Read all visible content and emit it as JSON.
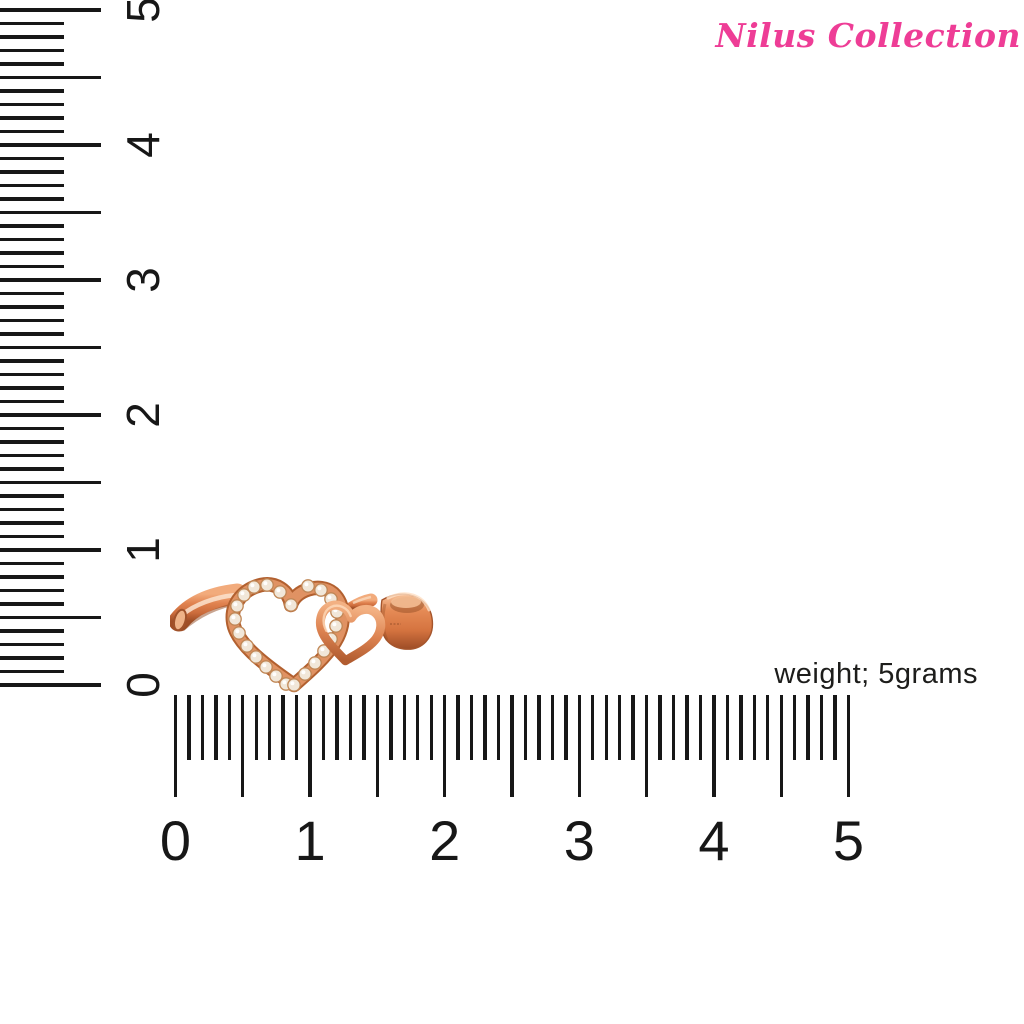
{
  "brand": {
    "name": "Nilus Collection",
    "color": "#ee3d96"
  },
  "product": {
    "weight_label": "weight; 5grams",
    "item": "rose-gold double-heart ring with clear pavé stones"
  },
  "rulers": {
    "vertical": {
      "labels": [
        "5",
        "4",
        "3",
        "2",
        "1",
        "0"
      ],
      "unit_count": 5,
      "minor_per_unit": 10
    },
    "horizontal": {
      "labels": [
        "0",
        "1",
        "2",
        "3",
        "4",
        "5"
      ],
      "unit_count": 5,
      "minor_per_unit": 10
    }
  },
  "colors": {
    "tick": "#171717",
    "rose_gold_mid": "#dd7f4f",
    "rose_gold_dark": "#a04e26",
    "rose_gold_light": "#f6c9a5",
    "stone": "#f1e7d9"
  }
}
